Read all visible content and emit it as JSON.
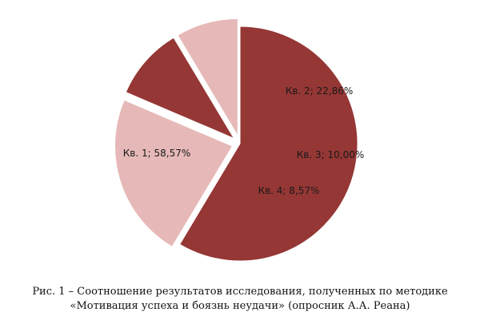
{
  "caption": {
    "line1": "Рис. 1 – Соотношение результатов исследования, полученных по методике",
    "line2": "«Мотивация успеха и боязнь неудачи» (опросник А.А. Реана)"
  },
  "chart_data": {
    "type": "pie",
    "exploded": true,
    "start_angle_deg": 0,
    "direction": "clockwise",
    "slices": [
      {
        "category": "Кв. 1",
        "value": 58.57,
        "label": "Кв. 1; 58,57%",
        "color": "#953735"
      },
      {
        "category": "Кв. 2",
        "value": 22.86,
        "label": "Кв. 2; 22,86%",
        "color": "#e6b9b8"
      },
      {
        "category": "Кв. 3",
        "value": 10.0,
        "label": "Кв. 3; 10,00%",
        "color": "#953735"
      },
      {
        "category": "Кв. 4",
        "value": 8.57,
        "label": "Кв. 4; 8,57%",
        "color": "#e6b9b8"
      }
    ]
  }
}
